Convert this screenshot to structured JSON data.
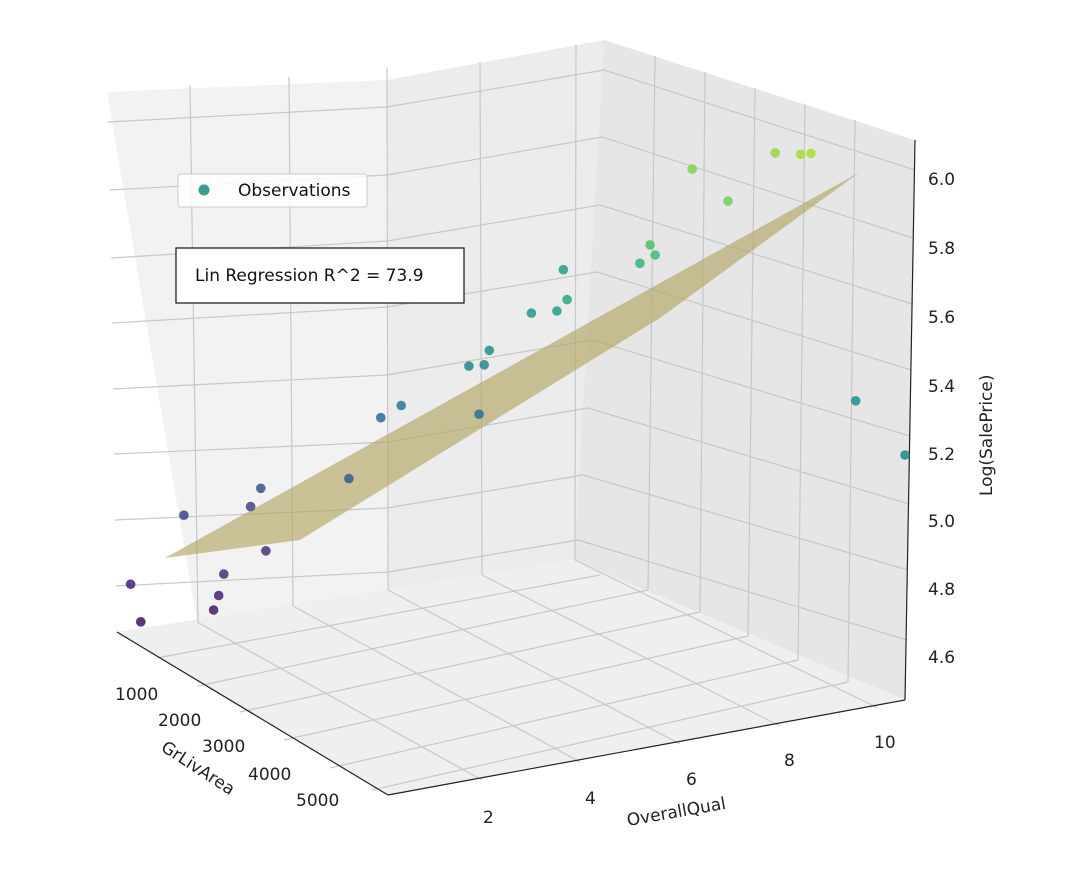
{
  "chart_data": {
    "type": "scatter",
    "projection": "3d",
    "xlabel": "GrLivArea",
    "ylabel": "OverallQual",
    "zlabel": "Log(SalePrice)",
    "xticks": [
      "1000",
      "2000",
      "3000",
      "4000",
      "5000"
    ],
    "yticks": [
      "2",
      "4",
      "6",
      "8",
      "10"
    ],
    "zticks": [
      "4.6",
      "4.8",
      "5.0",
      "5.2",
      "5.4",
      "5.6",
      "5.8",
      "6.0"
    ],
    "xlim": [
      334,
      5642
    ],
    "ylim": [
      1,
      10
    ],
    "zlim": [
      4.5,
      6.1
    ],
    "grid": true,
    "colormap": "viridis",
    "legend": {
      "entries": [
        "Observations"
      ],
      "marker_color": "#3b9e8c",
      "placement": "upper-left"
    },
    "annotation": "Lin Regression R^2 = 73.9",
    "plane_color": "#b3a665",
    "regression_plane": {
      "intercept": 4.42,
      "coef_GrLivArea": 0.00012,
      "coef_OverallQual": 0.085
    },
    "series": [
      {
        "points": [
          [
            600,
            1,
            4.66
          ],
          [
            800,
            1,
            4.57
          ],
          [
            1100,
            2,
            4.6
          ],
          [
            1200,
            2,
            4.65
          ],
          [
            1000,
            3,
            4.73
          ],
          [
            1300,
            2,
            4.72
          ],
          [
            520,
            2,
            4.82
          ],
          [
            700,
            3,
            4.83
          ],
          [
            900,
            3,
            4.9
          ],
          [
            1500,
            4,
            4.95
          ],
          [
            4676,
            10,
            5.27
          ],
          [
            5642,
            10,
            5.2
          ],
          [
            1800,
            6,
            5.1
          ],
          [
            1200,
            8,
            5.4
          ],
          [
            1700,
            7,
            5.35
          ],
          [
            1000,
            5,
            5.05
          ],
          [
            1600,
            6,
            5.22
          ],
          [
            2400,
            7,
            5.45
          ],
          [
            2900,
            8,
            5.62
          ],
          [
            3300,
            9,
            5.75
          ],
          [
            3600,
            10,
            5.88
          ],
          [
            3800,
            10,
            5.9
          ],
          [
            2600,
            9,
            5.78
          ],
          [
            3100,
            10,
            5.84
          ],
          [
            2000,
            6,
            5.3
          ],
          [
            2200,
            7,
            5.4
          ],
          [
            1400,
            5,
            5.12
          ],
          [
            1900,
            6,
            5.25
          ],
          [
            2700,
            8,
            5.55
          ],
          [
            3000,
            8,
            5.6
          ]
        ]
      }
    ]
  }
}
